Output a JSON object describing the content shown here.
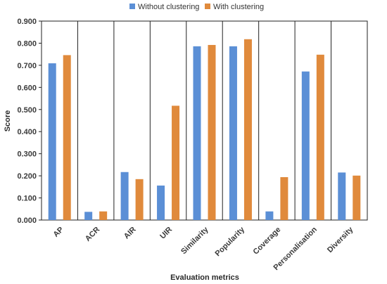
{
  "chart_data": {
    "type": "bar",
    "title": "",
    "xlabel": "Evaluation metrics",
    "ylabel": "Score",
    "ylim": [
      0,
      0.9
    ],
    "yticks": [
      "0.000",
      "0.100",
      "0.200",
      "0.300",
      "0.400",
      "0.500",
      "0.600",
      "0.700",
      "0.800",
      "0.900"
    ],
    "grid": false,
    "legend_position": "top",
    "categories": [
      "AP",
      "ACR",
      "AIR",
      "UIR",
      "Similarity",
      "Popularity",
      "Coverage",
      "Personalisation",
      "Diversity"
    ],
    "series": [
      {
        "name": "Without clustering",
        "color": "#5b8fd6",
        "values": [
          0.709,
          0.037,
          0.217,
          0.156,
          0.786,
          0.786,
          0.039,
          0.672,
          0.215
        ]
      },
      {
        "name": "With clustering",
        "color": "#e08a3c",
        "values": [
          0.746,
          0.039,
          0.185,
          0.517,
          0.792,
          0.818,
          0.194,
          0.748,
          0.201
        ]
      }
    ]
  }
}
